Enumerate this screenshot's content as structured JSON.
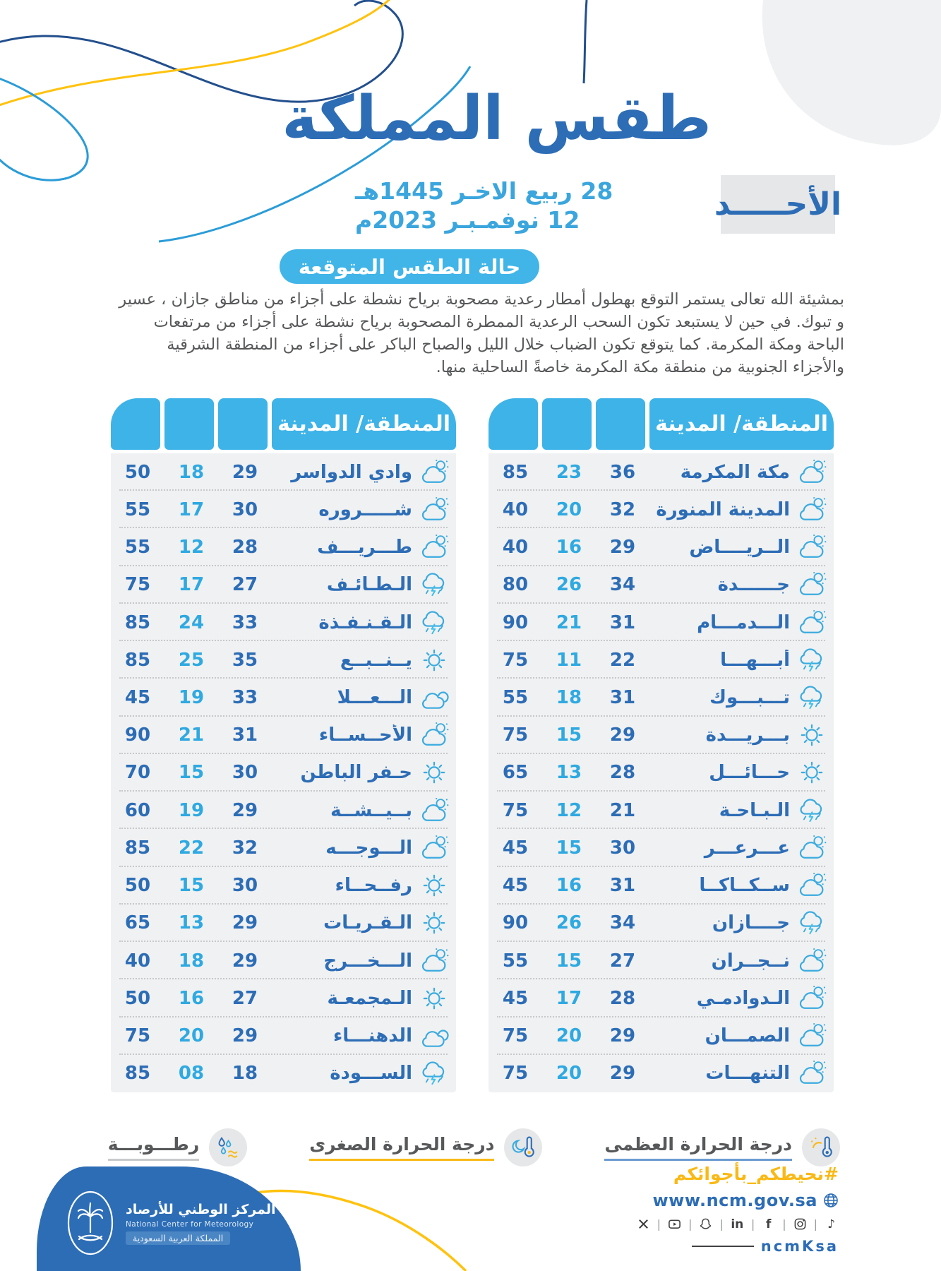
{
  "header": {
    "title": "طقس المملكة",
    "day": "الأحـــــد",
    "date_hijri": "28 ربيع الاخـر 1445هـ",
    "date_gregorian": "12 نوفمـبـر 2023م"
  },
  "forecast": {
    "badge": "حالة الطقس المتوقعة",
    "text": "بمشيئة الله تعالى يستمر التوقع بهطول أمطار رعدية مصحوبة برياح نشطة على أجزاء من مناطق  جازان ، عسير و تبوك. في حين لا يستبعد تكون السحب الرعدية الممطرة المصحوبة برياح نشطة على أجزاء من مرتفعات الباحة ومكة المكرمة. كما يتوقع تكون الضباب خلال الليل والصباح الباكر على أجزاء من المنطقة الشرقية والأجزاء الجنوبية من منطقة مكة المكرمة خاصةً الساحلية منها."
  },
  "table_meta": {
    "name_header": "المنطقة/ المدينة",
    "max_icon": "thermometer-sun-icon",
    "min_icon": "thermometer-moon-icon",
    "humidity_icon": "humidity-drops-icon"
  },
  "primary_table": {
    "rows": [
      {
        "city": "مكة المكرمة",
        "max": "36",
        "min": "23",
        "humidity": "85",
        "icon": "partly-cloudy"
      },
      {
        "city": "المدينة المنورة",
        "max": "32",
        "min": "20",
        "humidity": "40",
        "icon": "partly-cloudy"
      },
      {
        "city": "الــريــــاض",
        "max": "29",
        "min": "16",
        "humidity": "40",
        "icon": "partly-cloudy"
      },
      {
        "city": "جــــــدة",
        "max": "34",
        "min": "26",
        "humidity": "80",
        "icon": "partly-cloudy"
      },
      {
        "city": "الـــدمـــام",
        "max": "31",
        "min": "21",
        "humidity": "90",
        "icon": "partly-cloudy"
      },
      {
        "city": "أبـــهـــا",
        "max": "22",
        "min": "11",
        "humidity": "75",
        "icon": "storm"
      },
      {
        "city": "تـــبـــوك",
        "max": "31",
        "min": "18",
        "humidity": "55",
        "icon": "storm"
      },
      {
        "city": "بـــريـــدة",
        "max": "29",
        "min": "15",
        "humidity": "75",
        "icon": "sunny"
      },
      {
        "city": "حـــائـــل",
        "max": "28",
        "min": "13",
        "humidity": "65",
        "icon": "sunny"
      },
      {
        "city": "الـبـاحـة",
        "max": "21",
        "min": "12",
        "humidity": "75",
        "icon": "storm"
      },
      {
        "city": "عـــرعـــر",
        "max": "30",
        "min": "15",
        "humidity": "45",
        "icon": "partly-cloudy"
      },
      {
        "city": "ســكــاكــا",
        "max": "31",
        "min": "16",
        "humidity": "45",
        "icon": "partly-cloudy"
      },
      {
        "city": "جــــازان",
        "max": "34",
        "min": "26",
        "humidity": "90",
        "icon": "storm"
      },
      {
        "city": "نــجــران",
        "max": "27",
        "min": "15",
        "humidity": "55",
        "icon": "partly-cloudy"
      },
      {
        "city": "الـدوادمـي",
        "max": "28",
        "min": "17",
        "humidity": "45",
        "icon": "partly-cloudy"
      },
      {
        "city": "الصمـــان",
        "max": "29",
        "min": "20",
        "humidity": "75",
        "icon": "partly-cloudy"
      },
      {
        "city": "التنهـــات",
        "max": "29",
        "min": "20",
        "humidity": "75",
        "icon": "partly-cloudy"
      }
    ]
  },
  "secondary_table": {
    "rows": [
      {
        "city": "وادي الدواسر",
        "max": "29",
        "min": "18",
        "humidity": "50",
        "icon": "partly-cloudy"
      },
      {
        "city": "شـــــروره",
        "max": "30",
        "min": "17",
        "humidity": "55",
        "icon": "partly-cloudy"
      },
      {
        "city": "طـــريـــف",
        "max": "28",
        "min": "12",
        "humidity": "55",
        "icon": "partly-cloudy"
      },
      {
        "city": "الـطـائـف",
        "max": "27",
        "min": "17",
        "humidity": "75",
        "icon": "storm"
      },
      {
        "city": "الـقـنـفـذة",
        "max": "33",
        "min": "24",
        "humidity": "85",
        "icon": "storm"
      },
      {
        "city": "يــنــبــع",
        "max": "35",
        "min": "25",
        "humidity": "85",
        "icon": "sunny"
      },
      {
        "city": "الـــعـــلا",
        "max": "33",
        "min": "19",
        "humidity": "45",
        "icon": "cloudy"
      },
      {
        "city": "الأحــســاء",
        "max": "31",
        "min": "21",
        "humidity": "90",
        "icon": "partly-cloudy"
      },
      {
        "city": "حـفر الباطن",
        "max": "30",
        "min": "15",
        "humidity": "70",
        "icon": "sunny"
      },
      {
        "city": "بــيــشــة",
        "max": "29",
        "min": "19",
        "humidity": "60",
        "icon": "partly-cloudy"
      },
      {
        "city": "الـــوجـــه",
        "max": "32",
        "min": "22",
        "humidity": "85",
        "icon": "partly-cloudy"
      },
      {
        "city": "رفــحــاء",
        "max": "30",
        "min": "15",
        "humidity": "50",
        "icon": "sunny"
      },
      {
        "city": "الـقـريـات",
        "max": "29",
        "min": "13",
        "humidity": "65",
        "icon": "sunny"
      },
      {
        "city": "الـــخـــرج",
        "max": "29",
        "min": "18",
        "humidity": "40",
        "icon": "partly-cloudy"
      },
      {
        "city": "الـمجمعـة",
        "max": "27",
        "min": "16",
        "humidity": "50",
        "icon": "sunny"
      },
      {
        "city": "الدهنـــاء",
        "max": "29",
        "min": "20",
        "humidity": "75",
        "icon": "cloudy"
      },
      {
        "city": "الســـودة",
        "max": "18",
        "min": "08",
        "humidity": "85",
        "icon": "storm"
      }
    ]
  },
  "legend": {
    "max_label": "درجة الحرارة العظمى",
    "min_label": "درجة الحرارة الصغرى",
    "humidity_label": "رطـــوبـــة"
  },
  "footer": {
    "hashtag": "#نحيطكم_بأجوائكم",
    "website": "www.ncm.gov.sa",
    "handle": "ncmKsa",
    "social": [
      "x",
      "youtube",
      "snapchat",
      "linkedin",
      "facebook",
      "instagram",
      "tiktok"
    ],
    "logo": {
      "name_ar": "المركز الوطني للأرصاد",
      "name_en": "National Center for Meteorology",
      "country": "المملكة العربية السعودية"
    }
  },
  "colors": {
    "primary_blue": "#2d6db6",
    "light_blue": "#3eb3e8",
    "cyan_blue": "#2fa9e1",
    "yellow": "#f9b916",
    "gray_bg": "#f0f1f2",
    "text_gray": "#57585a"
  }
}
